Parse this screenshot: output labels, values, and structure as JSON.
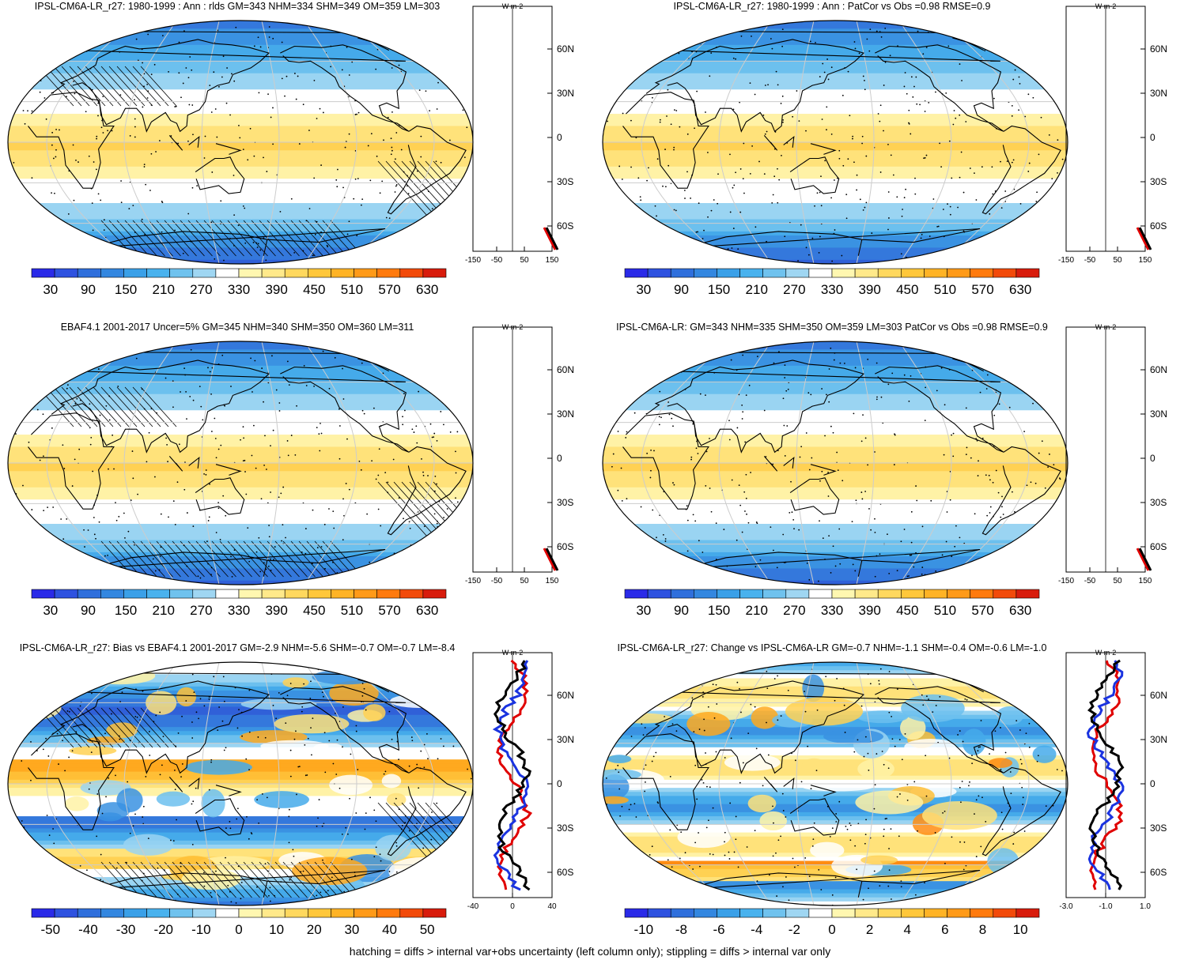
{
  "figure": {
    "footer": "hatching = diffs > internal var+obs uncertainty (left column only); stippling = diffs > internal var only",
    "colors": {
      "ocean_white": "#ffffff",
      "coast": "#000000",
      "grid": "#cccccc"
    }
  },
  "chart_data": [
    {
      "id": "p1",
      "type": "heatmap",
      "map": "robinson",
      "title": "IPSL-CM6A-LR_r27: 1980-1999 : Ann : rlds GM=343 NHM=334 SHM=349 OM=359 LM=303",
      "colorbar": {
        "labels": [
          "30",
          "90",
          "150",
          "210",
          "270",
          "330",
          "390",
          "450",
          "510",
          "570",
          "630"
        ],
        "range": [
          0,
          660
        ]
      },
      "zonal_panel": {
        "unit": "W m-2",
        "x_ticks": [
          "-150",
          "-50",
          "50",
          "150"
        ],
        "y_ticks": [
          "60N",
          "30N",
          "0",
          "30S",
          "60S"
        ]
      },
      "hatching": true,
      "stippling": true
    },
    {
      "id": "p2",
      "type": "heatmap",
      "map": "robinson",
      "title": "IPSL-CM6A-LR_r27: 1980-1999 : Ann : PatCor vs Obs =0.98 RMSE=0.9",
      "colorbar": {
        "labels": [
          "30",
          "90",
          "150",
          "210",
          "270",
          "330",
          "390",
          "450",
          "510",
          "570",
          "630"
        ],
        "range": [
          0,
          660
        ]
      },
      "zonal_panel": {
        "unit": "W m-2",
        "x_ticks": [
          "-150",
          "-50",
          "50",
          "150"
        ],
        "y_ticks": [
          "60N",
          "30N",
          "0",
          "30S",
          "60S"
        ]
      },
      "hatching": false,
      "stippling": true
    },
    {
      "id": "p3",
      "type": "heatmap",
      "map": "robinson",
      "title": "EBAF4.1 2001-2017 Uncer=5% GM=345 NHM=340 SHM=350 OM=360 LM=311",
      "colorbar": {
        "labels": [
          "30",
          "90",
          "150",
          "210",
          "270",
          "330",
          "390",
          "450",
          "510",
          "570",
          "630"
        ],
        "range": [
          0,
          660
        ]
      },
      "zonal_panel": {
        "unit": "W m-2",
        "x_ticks": [
          "-150",
          "-50",
          "50",
          "150"
        ],
        "y_ticks": [
          "60N",
          "30N",
          "0",
          "30S",
          "60S"
        ]
      },
      "hatching": true,
      "stippling": true
    },
    {
      "id": "p4",
      "type": "heatmap",
      "map": "robinson",
      "title": "IPSL-CM6A-LR: GM=343 NHM=335 SHM=350 OM=359 LM=303 PatCor vs Obs =0.98 RMSE=0.9",
      "colorbar": {
        "labels": [
          "30",
          "90",
          "150",
          "210",
          "270",
          "330",
          "390",
          "450",
          "510",
          "570",
          "630"
        ],
        "range": [
          0,
          660
        ]
      },
      "zonal_panel": {
        "unit": "W m-2",
        "x_ticks": [
          "-150",
          "-50",
          "50",
          "150"
        ],
        "y_ticks": [
          "60N",
          "30N",
          "0",
          "30S",
          "60S"
        ]
      },
      "hatching": false,
      "stippling": true
    },
    {
      "id": "p5",
      "type": "heatmap",
      "map": "robinson",
      "title": "IPSL-CM6A-LR_r27: Bias vs EBAF4.1 2001-2017 GM=-2.9 NHM=-5.6 SHM=-0.7 OM=-0.7 LM=-8.4",
      "colorbar": {
        "labels": [
          "-50",
          "-40",
          "-30",
          "-20",
          "-10",
          "0",
          "10",
          "20",
          "30",
          "40",
          "50"
        ],
        "range": [
          -55,
          55
        ]
      },
      "zonal_panel": {
        "unit": "W m-2",
        "x_ticks": [
          "-40",
          "0",
          "40"
        ],
        "y_ticks": [
          "60N",
          "30N",
          "0",
          "30S",
          "60S"
        ]
      },
      "hatching": true,
      "stippling": true
    },
    {
      "id": "p6",
      "type": "heatmap",
      "map": "robinson",
      "title": "IPSL-CM6A-LR_r27: Change vs IPSL-CM6A-LR GM=-0.7 NHM=-1.1 SHM=-0.4 OM=-0.6 LM=-1.0",
      "colorbar": {
        "labels": [
          "-10",
          "-8",
          "-6",
          "-4",
          "-2",
          "0",
          "2",
          "4",
          "6",
          "8",
          "10"
        ],
        "range": [
          -11,
          11
        ]
      },
      "zonal_panel": {
        "unit": "W m-2",
        "x_ticks": [
          "-3.0",
          "-1.0",
          "1.0"
        ],
        "y_ticks": [
          "60N",
          "30N",
          "0",
          "30S",
          "60S"
        ]
      },
      "hatching": false,
      "stippling": true
    }
  ]
}
